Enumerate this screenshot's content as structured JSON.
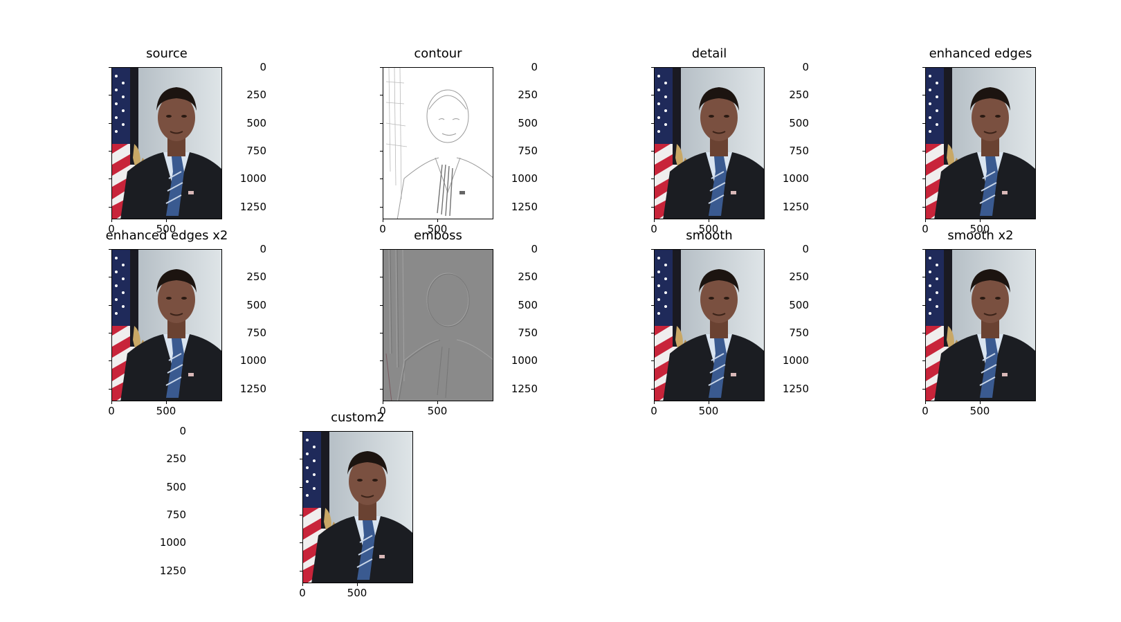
{
  "figure": {
    "panels": [
      {
        "title": "source",
        "filter": "normal"
      },
      {
        "title": "contour",
        "filter": "contour"
      },
      {
        "title": "detail",
        "filter": "normal"
      },
      {
        "title": "enhanced edges",
        "filter": "normal"
      },
      {
        "title": "enhanced edges x2",
        "filter": "normal"
      },
      {
        "title": "emboss",
        "filter": "emboss"
      },
      {
        "title": "smooth",
        "filter": "normal"
      },
      {
        "title": "smooth x2",
        "filter": "normal"
      },
      {
        "title": "custom2",
        "filter": "normal"
      }
    ],
    "y_ticks": [
      "0",
      "250",
      "500",
      "750",
      "1000",
      "1250"
    ],
    "x_ticks": [
      "0",
      "500"
    ],
    "colors": {
      "background": "#ffffff",
      "flag_red": "#c8243a",
      "flag_blue": "#1f2a5a",
      "wall": "#c9d2d8",
      "suit": "#1b1d22",
      "skin": "#7a5040",
      "shirt": "#d9e4f0",
      "tie": "#3a5a90",
      "emboss_gray": "#8a8a8a"
    }
  }
}
